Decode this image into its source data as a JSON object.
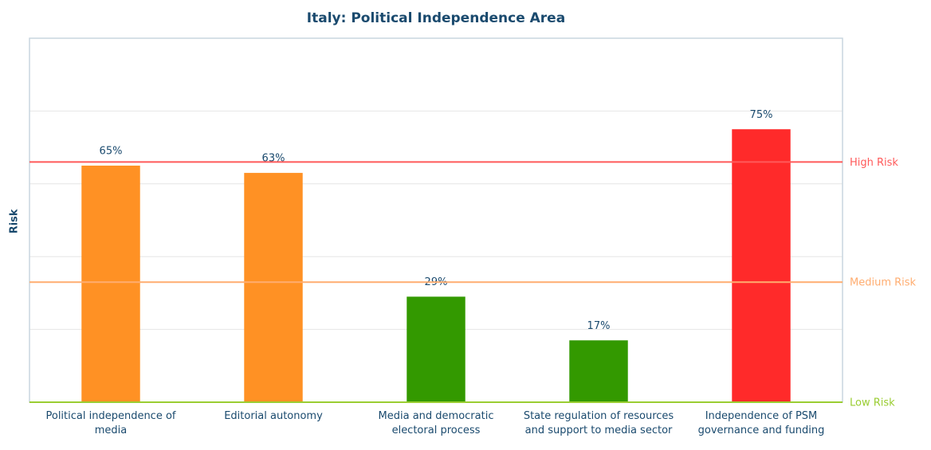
{
  "chart_data": {
    "type": "bar",
    "title": "Italy: Political Independence Area",
    "ylabel": "Risk",
    "categories": [
      "Political independence of media",
      "Editorial autonomy",
      "Media and democratic electoral process",
      "State regulation of resources and support to media sector",
      "Independence of PSM governance and funding"
    ],
    "values": [
      65,
      63,
      29,
      17,
      75
    ],
    "value_labels": [
      "65%",
      "63%",
      "29%",
      "17%",
      "75%"
    ],
    "colors": [
      "#ff9124",
      "#ff9124",
      "#339900",
      "#339900",
      "#ff2a2a"
    ],
    "ylim": [
      0,
      100
    ],
    "yticks": [
      0,
      20,
      40,
      60,
      80,
      100
    ],
    "grid": true,
    "thresholds": [
      {
        "label": "High Risk",
        "value": 66,
        "color": "#ff5a5a"
      },
      {
        "label": "Medium Risk",
        "value": 33,
        "color": "#ffad70"
      },
      {
        "label": "Low Risk",
        "value": 0,
        "color": "#9acd32"
      }
    ]
  }
}
